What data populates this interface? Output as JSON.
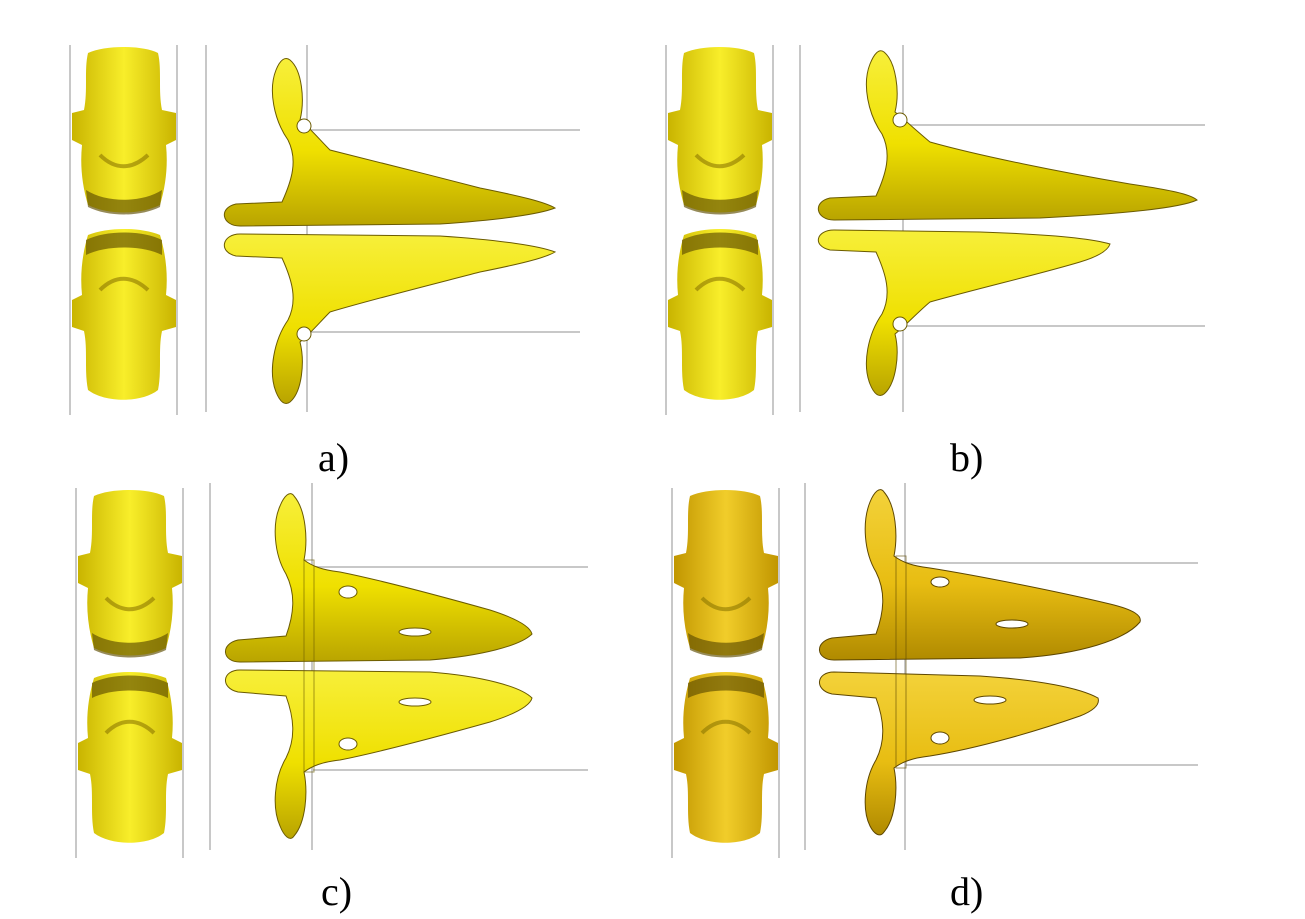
{
  "figure": {
    "panels": [
      {
        "id": "a",
        "caption": "a)",
        "variant": "symmetric"
      },
      {
        "id": "b",
        "caption": "b)",
        "variant": "asymmetric"
      },
      {
        "id": "c",
        "caption": "c)",
        "variant": "symmetric-holes"
      },
      {
        "id": "d",
        "caption": "d)",
        "variant": "asymmetric-holes"
      }
    ]
  },
  "colors": {
    "isosurface_yellow": "#f2e400",
    "isosurface_gold": "#e8be12",
    "shadow": "#6e5a00",
    "guide_line": "#c8c8c8"
  }
}
